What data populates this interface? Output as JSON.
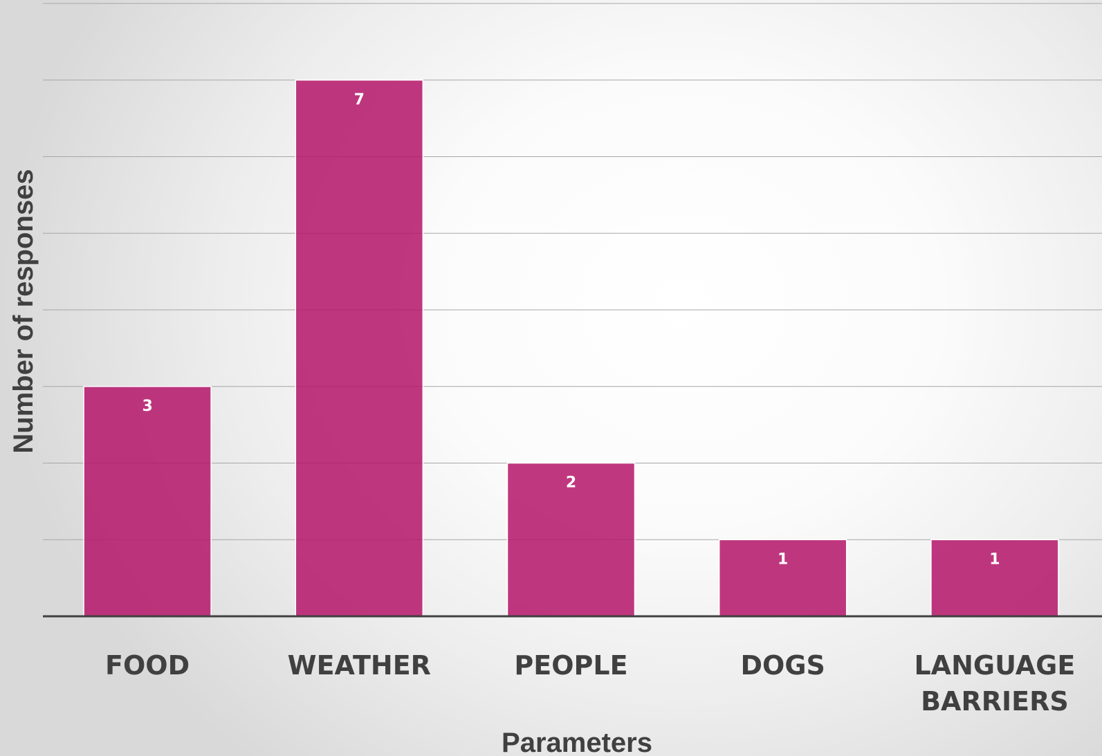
{
  "chart_data": {
    "type": "bar",
    "categories": [
      "FOOD",
      "WEATHER",
      "PEOPLE",
      "DOGS",
      "LANGUAGE BARRIERS"
    ],
    "category_lines": [
      [
        "FOOD"
      ],
      [
        "WEATHER"
      ],
      [
        "PEOPLE"
      ],
      [
        "DOGS"
      ],
      [
        "LANGUAGE",
        "BARRIERS"
      ]
    ],
    "values": [
      3,
      7,
      2,
      1,
      1
    ],
    "title": "",
    "xlabel": "Parameters",
    "ylabel": "Number of responses",
    "ylim": [
      0,
      8
    ],
    "grid": true,
    "legend": "none",
    "colors": {
      "bar": "#b5176a",
      "text": "#404040",
      "grid": "#a6a6a6"
    }
  }
}
